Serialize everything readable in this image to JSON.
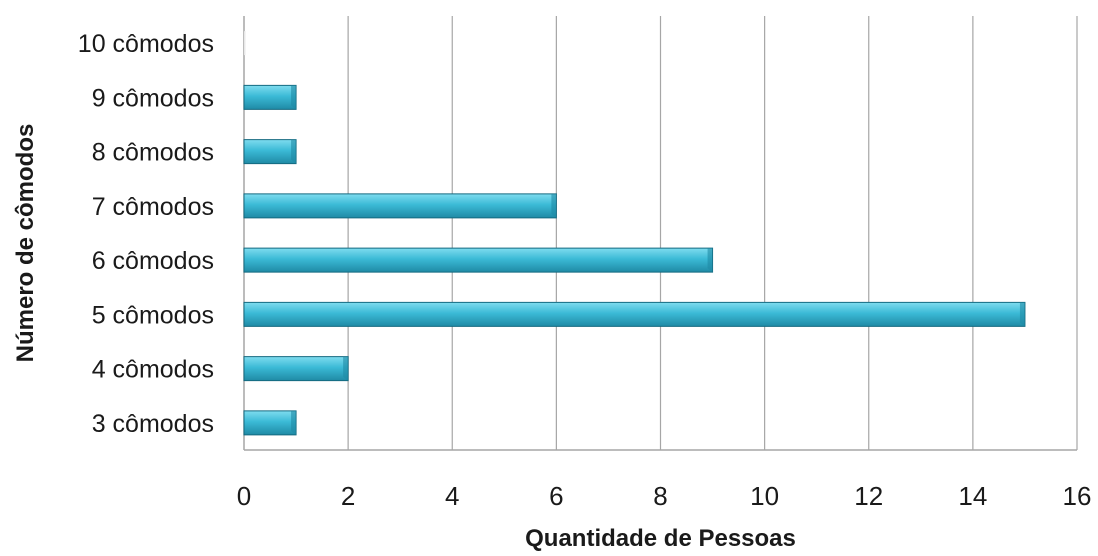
{
  "chart_data": {
    "type": "bar",
    "orientation": "horizontal",
    "categories": [
      "3 cômodos",
      "4 cômodos",
      "5 cômodos",
      "6 cômodos",
      "7 cômodos",
      "8 cômodos",
      "9 cômodos",
      "10 cômodos"
    ],
    "values": [
      1,
      2,
      15,
      9,
      6,
      1,
      1,
      0
    ],
    "xlabel": "Quantidade de Pessoas",
    "ylabel": "Número de cômodos",
    "xlim": [
      0,
      16
    ],
    "xticks": [
      "0",
      "2",
      "4",
      "6",
      "8",
      "10",
      "12",
      "14",
      "16"
    ],
    "grid": "vertical",
    "legend": "none",
    "colors": {
      "bar_top": "#7fdcef",
      "bar_mid": "#3bbad6",
      "bar_bottom": "#1f8aa5",
      "bar_stroke": "#146a80",
      "grid": "#a6a6a6"
    }
  }
}
